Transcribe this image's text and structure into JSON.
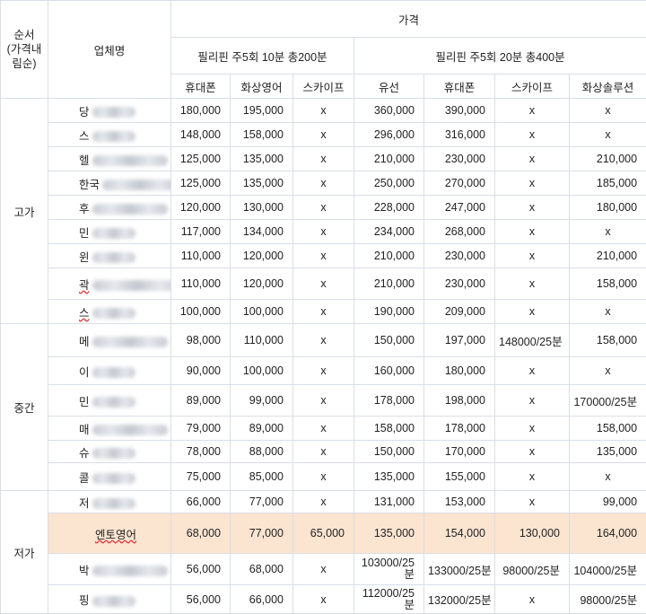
{
  "header": {
    "order": "순서\n(가격내\n림순)",
    "company": "업체명",
    "price": "가격",
    "group1": "필리핀 주5회 10분 총200분",
    "group2": "필리핀 주5회 20분 총400분",
    "cols": [
      "휴대폰",
      "화상영어",
      "스카이프",
      "유선",
      "휴대폰",
      "스카이프",
      "화상솔루션"
    ]
  },
  "categories": {
    "high": "고가",
    "mid": "중간",
    "low": "저가"
  },
  "rows": [
    {
      "name": "당",
      "v": [
        "180,000",
        "195,000",
        "x",
        "360,000",
        "390,000",
        "x",
        "x"
      ]
    },
    {
      "name": "스",
      "v": [
        "148,000",
        "158,000",
        "x",
        "296,000",
        "316,000",
        "x",
        "x"
      ]
    },
    {
      "name": "헬",
      "v": [
        "125,000",
        "135,000",
        "x",
        "210,000",
        "230,000",
        "x",
        "210,000"
      ]
    },
    {
      "name": "한국",
      "v": [
        "125,000",
        "135,000",
        "x",
        "250,000",
        "270,000",
        "x",
        "185,000"
      ]
    },
    {
      "name": "후",
      "v": [
        "120,000",
        "130,000",
        "x",
        "228,000",
        "247,000",
        "x",
        "180,000"
      ]
    },
    {
      "name": "민",
      "v": [
        "117,000",
        "134,000",
        "x",
        "234,000",
        "268,000",
        "x",
        "x"
      ]
    },
    {
      "name": "윈",
      "v": [
        "110,000",
        "120,000",
        "x",
        "210,000",
        "230,000",
        "x",
        "210,000"
      ]
    },
    {
      "name": "곽",
      "v": [
        "110,000",
        "120,000",
        "x",
        "210,000",
        "230,000",
        "x",
        "158,000"
      ]
    },
    {
      "name": "스",
      "v": [
        "100,000",
        "100,000",
        "x",
        "190,000",
        "209,000",
        "x",
        "x"
      ]
    },
    {
      "name": "메",
      "v": [
        "98,000",
        "110,000",
        "x",
        "150,000",
        "197,000",
        "148000/25분",
        "158,000"
      ]
    },
    {
      "name": "이",
      "v": [
        "90,000",
        "100,000",
        "x",
        "160,000",
        "180,000",
        "x",
        "x"
      ]
    },
    {
      "name": "민",
      "v": [
        "89,000",
        "99,000",
        "x",
        "178,000",
        "198,000",
        "x",
        "170000/25분"
      ]
    },
    {
      "name": "매",
      "v": [
        "79,000",
        "89,000",
        "x",
        "158,000",
        "178,000",
        "x",
        "158,000"
      ]
    },
    {
      "name": "슈",
      "v": [
        "78,000",
        "88,000",
        "x",
        "150,000",
        "170,000",
        "x",
        "135,000"
      ]
    },
    {
      "name": "콜",
      "v": [
        "75,000",
        "85,000",
        "x",
        "135,000",
        "155,000",
        "x",
        "x"
      ]
    },
    {
      "name": "저",
      "v": [
        "66,000",
        "77,000",
        "x",
        "131,000",
        "153,000",
        "x",
        "99,000"
      ]
    },
    {
      "name": "엔토영어",
      "v": [
        "68,000",
        "77,000",
        "65,000",
        "135,000",
        "154,000",
        "130,000",
        "164,000"
      ]
    },
    {
      "name": "박",
      "v": [
        "56,000",
        "68,000",
        "x",
        "103000/25분",
        "133000/25분",
        "98000/25분",
        "104000/25분"
      ]
    },
    {
      "name": "핑",
      "v": [
        "56,000",
        "66,000",
        "x",
        "112000/25분",
        "132000/25분",
        "x",
        "98000/25분"
      ]
    }
  ]
}
